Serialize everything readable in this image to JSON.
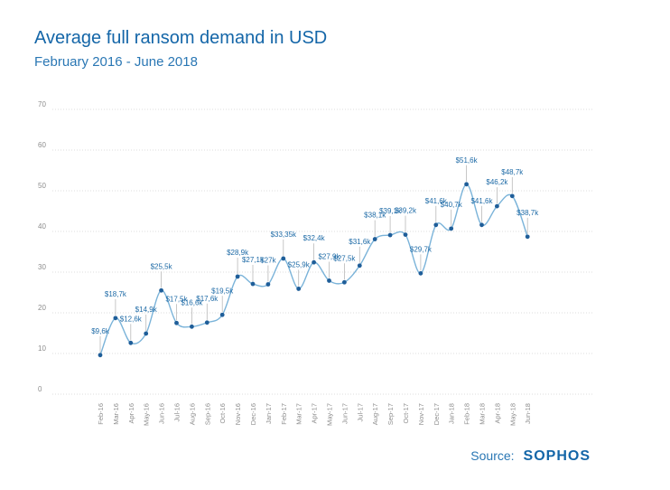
{
  "title": "Average full ransom demand in USD",
  "subtitle": "February 2016 - June 2018",
  "source_label": "Source:",
  "logo": "SOPHOS",
  "colors": {
    "line": "#7ab3d9",
    "point": "#1f5e99",
    "text": "#1d6aa6",
    "axis": "#8d8d8d",
    "grid": "#dcdcdc",
    "leader": "#b9b9b9"
  },
  "chart_data": {
    "type": "line",
    "title": "Average full ransom demand in USD",
    "subtitle": "February 2016 - June 2018",
    "xlabel": "",
    "ylabel": "",
    "ylim": [
      0,
      70
    ],
    "y_ticks": [
      "0",
      "10",
      "20",
      "30",
      "40",
      "50",
      "60",
      "70"
    ],
    "grid": true,
    "legend": "none",
    "categories": [
      "Feb-16",
      "Mar-16",
      "Apr-16",
      "May-16",
      "Jun-16",
      "Jul-16",
      "Aug-16",
      "Sep-16",
      "Oct-16",
      "Nov-16",
      "Dec-16",
      "Jan-17",
      "Feb-17",
      "Mar-17",
      "Apr-17",
      "May-17",
      "Jun-17",
      "Jul-17",
      "Aug-17",
      "Sep-17",
      "Oct-17",
      "Nov-17",
      "Dec-17",
      "Jan-18",
      "Feb-18",
      "Mar-18",
      "Apr-18",
      "May-18",
      "Jun-18"
    ],
    "values": [
      9.6,
      18.7,
      12.6,
      14.9,
      25.5,
      17.5,
      16.6,
      17.6,
      19.5,
      28.9,
      27.1,
      27,
      33.35,
      25.9,
      32.4,
      27.9,
      27.5,
      31.6,
      38.1,
      39.1,
      39.2,
      29.7,
      41.6,
      40.7,
      51.6,
      41.6,
      46.2,
      48.7,
      38.7
    ],
    "labels": [
      "$9,6k",
      "$18,7k",
      "$12,6k",
      "$14,9k",
      "$25,5k",
      "$17,5k",
      "$16,6k",
      "$17,6k",
      "$19,5k",
      "$28,9k",
      "$27,1k",
      "$27k",
      "$33,35k",
      "$25,9k",
      "$32,4k",
      "$27,9k",
      "$27,5k",
      "$31,6k",
      "$38,1k",
      "$39,1k",
      "$39,2k",
      "$29,7k",
      "$41,6k",
      "$40,7k",
      "$51,6k",
      "$41,6k",
      "$46,2k",
      "$48,7k",
      "$38,7k"
    ]
  }
}
